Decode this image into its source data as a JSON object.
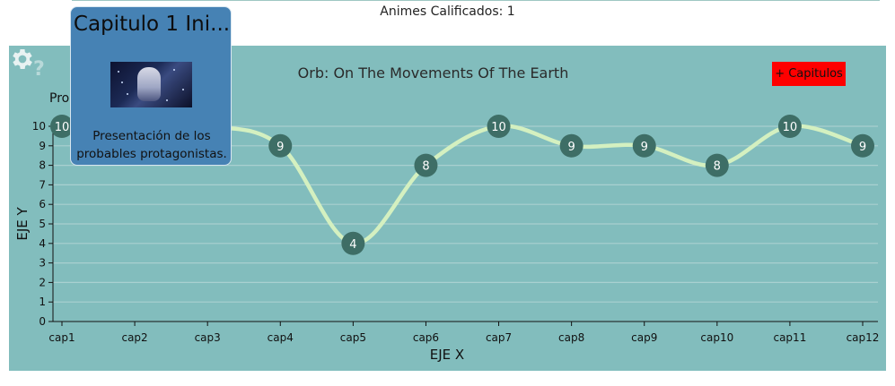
{
  "header": {
    "count_text": "Animes Calificados: 1"
  },
  "toolbar": {
    "help_icon": "question-icon",
    "help_label": "?",
    "add_label": "+ Capitulos",
    "settings_icon": "gear-icon",
    "add_color": "#ff0000"
  },
  "legend": {
    "text": "Pro"
  },
  "tooltip": {
    "title": "Capitulo 1 Ini...",
    "description": "Presentación de los probables protagonistas.",
    "thumbnail_icon": "episode-thumbnail"
  },
  "colors": {
    "panel": "#82bdbd",
    "line": "#d4f0c0",
    "point": "#3e6e66",
    "tooltip_bg": "#4682b4"
  },
  "chart_data": {
    "type": "line",
    "title": "Orb: On The Movements Of The Earth",
    "xlabel": "EJE X",
    "ylabel": "EJE Y",
    "categories": [
      "cap1",
      "cap2",
      "cap3",
      "cap4",
      "cap5",
      "cap6",
      "cap7",
      "cap8",
      "cap9",
      "cap10",
      "cap11",
      "cap12"
    ],
    "series": [
      {
        "values": [
          10,
          10,
          10,
          9,
          4,
          8,
          10,
          9,
          9,
          8,
          10,
          9
        ]
      }
    ],
    "ylim": [
      0,
      10
    ],
    "yticks": [
      0,
      1,
      2,
      3,
      4,
      5,
      6,
      7,
      8,
      9,
      10
    ],
    "grid": true,
    "curve": "smooth"
  }
}
